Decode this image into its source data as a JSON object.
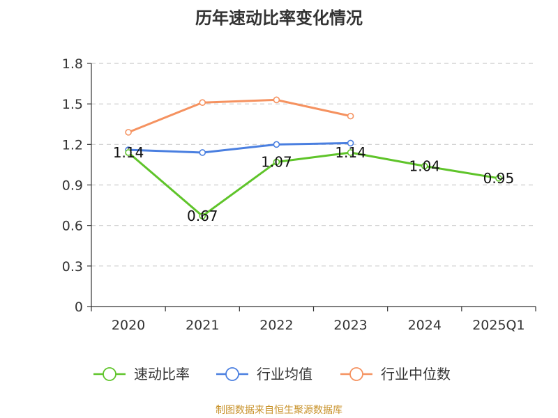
{
  "chart_data": {
    "type": "line",
    "title": "历年速动比率变化情况",
    "xlabel": "",
    "ylabel": "",
    "categories": [
      "2020",
      "2021",
      "2022",
      "2023",
      "2024",
      "2025Q1"
    ],
    "ylim": [
      0,
      1.8
    ],
    "yticks": [
      "0",
      "0.3",
      "0.6",
      "0.9",
      "1.2",
      "1.5",
      "1.8"
    ],
    "grid": true,
    "legend_position": "bottom",
    "series": [
      {
        "name": "速动比率",
        "color": "#5fc42a",
        "values": [
          1.14,
          0.67,
          1.07,
          1.14,
          1.04,
          0.95
        ],
        "labels": [
          "1.14",
          "0.67",
          "1.07",
          "1.14",
          "1.04",
          "0.95"
        ]
      },
      {
        "name": "行业均值",
        "color": "#4a7fe0",
        "values": [
          1.16,
          1.14,
          1.2,
          1.21,
          null,
          null
        ]
      },
      {
        "name": "行业中位数",
        "color": "#f59260",
        "values": [
          1.29,
          1.51,
          1.53,
          1.41,
          null,
          null
        ]
      }
    ]
  },
  "footer": {
    "source": "制图数据来自恒生聚源数据库"
  }
}
